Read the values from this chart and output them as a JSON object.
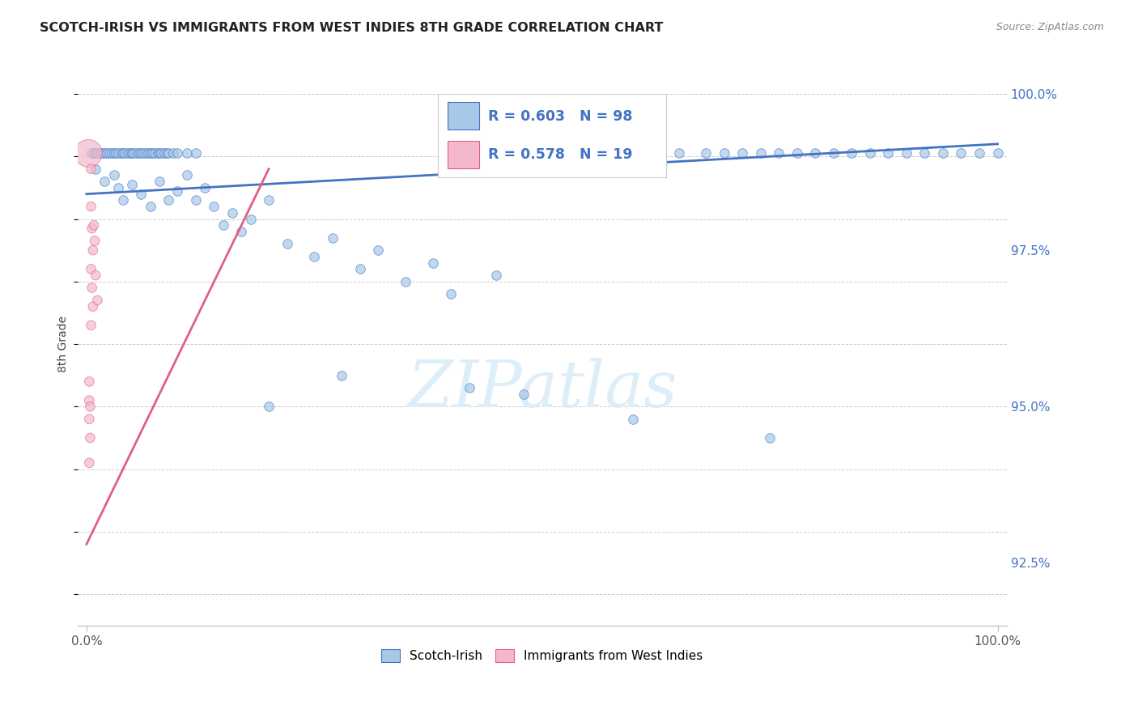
{
  "title": "SCOTCH-IRISH VS IMMIGRANTS FROM WEST INDIES 8TH GRADE CORRELATION CHART",
  "source": "Source: ZipAtlas.com",
  "ylabel": "8th Grade",
  "ylabel_right_values": [
    100.0,
    97.5,
    95.0,
    92.5
  ],
  "legend1_label": "Scotch-Irish",
  "legend2_label": "Immigrants from West Indies",
  "r1": 0.603,
  "n1": 98,
  "r2": 0.578,
  "n2": 19,
  "color_blue": "#a8c8e8",
  "color_pink": "#f4b8cc",
  "line_blue": "#4472c4",
  "line_pink": "#e06080",
  "blue_scatter": [
    [
      0.5,
      99.05
    ],
    [
      0.8,
      99.05
    ],
    [
      1.0,
      99.05
    ],
    [
      1.2,
      99.05
    ],
    [
      1.5,
      99.05
    ],
    [
      1.8,
      99.05
    ],
    [
      2.0,
      99.05
    ],
    [
      2.2,
      99.05
    ],
    [
      2.5,
      99.05
    ],
    [
      2.8,
      99.05
    ],
    [
      3.0,
      99.05
    ],
    [
      3.2,
      99.05
    ],
    [
      3.5,
      99.05
    ],
    [
      3.8,
      99.05
    ],
    [
      4.0,
      99.05
    ],
    [
      4.2,
      99.05
    ],
    [
      4.5,
      99.05
    ],
    [
      4.8,
      99.05
    ],
    [
      5.0,
      99.05
    ],
    [
      5.2,
      99.05
    ],
    [
      5.5,
      99.05
    ],
    [
      5.8,
      99.05
    ],
    [
      6.0,
      99.05
    ],
    [
      6.2,
      99.05
    ],
    [
      6.5,
      99.05
    ],
    [
      6.8,
      99.05
    ],
    [
      7.0,
      99.05
    ],
    [
      7.2,
      99.05
    ],
    [
      7.5,
      99.05
    ],
    [
      7.8,
      99.05
    ],
    [
      8.0,
      99.05
    ],
    [
      8.2,
      99.05
    ],
    [
      8.5,
      99.05
    ],
    [
      8.8,
      99.05
    ],
    [
      9.0,
      99.05
    ],
    [
      9.5,
      99.05
    ],
    [
      10.0,
      99.05
    ],
    [
      11.0,
      99.05
    ],
    [
      12.0,
      99.05
    ],
    [
      50.0,
      99.05
    ],
    [
      52.0,
      99.05
    ],
    [
      55.0,
      99.05
    ],
    [
      58.0,
      99.05
    ],
    [
      60.0,
      99.05
    ],
    [
      62.0,
      99.05
    ],
    [
      65.0,
      99.05
    ],
    [
      68.0,
      99.05
    ],
    [
      70.0,
      99.05
    ],
    [
      72.0,
      99.05
    ],
    [
      74.0,
      99.05
    ],
    [
      76.0,
      99.05
    ],
    [
      78.0,
      99.05
    ],
    [
      80.0,
      99.05
    ],
    [
      82.0,
      99.05
    ],
    [
      84.0,
      99.05
    ],
    [
      86.0,
      99.05
    ],
    [
      88.0,
      99.05
    ],
    [
      90.0,
      99.05
    ],
    [
      92.0,
      99.05
    ],
    [
      94.0,
      99.05
    ],
    [
      96.0,
      99.05
    ],
    [
      98.0,
      99.05
    ],
    [
      100.0,
      99.05
    ],
    [
      1.0,
      98.8
    ],
    [
      2.0,
      98.6
    ],
    [
      3.0,
      98.7
    ],
    [
      3.5,
      98.5
    ],
    [
      4.0,
      98.3
    ],
    [
      5.0,
      98.55
    ],
    [
      6.0,
      98.4
    ],
    [
      7.0,
      98.2
    ],
    [
      8.0,
      98.6
    ],
    [
      9.0,
      98.3
    ],
    [
      10.0,
      98.45
    ],
    [
      11.0,
      98.7
    ],
    [
      12.0,
      98.3
    ],
    [
      13.0,
      98.5
    ],
    [
      14.0,
      98.2
    ],
    [
      15.0,
      97.9
    ],
    [
      16.0,
      98.1
    ],
    [
      17.0,
      97.8
    ],
    [
      18.0,
      98.0
    ],
    [
      20.0,
      98.3
    ],
    [
      22.0,
      97.6
    ],
    [
      25.0,
      97.4
    ],
    [
      27.0,
      97.7
    ],
    [
      30.0,
      97.2
    ],
    [
      32.0,
      97.5
    ],
    [
      35.0,
      97.0
    ],
    [
      38.0,
      97.3
    ],
    [
      40.0,
      96.8
    ],
    [
      45.0,
      97.1
    ],
    [
      48.0,
      95.2
    ],
    [
      20.0,
      95.0
    ],
    [
      28.0,
      95.5
    ],
    [
      42.0,
      95.3
    ],
    [
      60.0,
      94.8
    ],
    [
      75.0,
      94.5
    ]
  ],
  "pink_scatter": [
    [
      0.2,
      99.05
    ],
    [
      0.5,
      98.2
    ],
    [
      0.6,
      97.85
    ],
    [
      0.7,
      97.5
    ],
    [
      0.5,
      97.2
    ],
    [
      0.6,
      96.9
    ],
    [
      0.7,
      96.6
    ],
    [
      0.5,
      96.3
    ],
    [
      0.8,
      97.9
    ],
    [
      0.9,
      97.65
    ],
    [
      0.5,
      98.8
    ],
    [
      1.0,
      97.1
    ],
    [
      1.2,
      96.7
    ],
    [
      0.3,
      95.1
    ],
    [
      0.3,
      94.8
    ],
    [
      0.3,
      95.4
    ],
    [
      0.4,
      95.0
    ],
    [
      0.4,
      94.5
    ],
    [
      0.3,
      94.1
    ]
  ],
  "pink_large_idx": 0,
  "xlim_min": 0,
  "xlim_max": 100,
  "ylim_min": 91.5,
  "ylim_max": 100.5,
  "watermark": "ZIPatlas",
  "watermark_color": "#ddeef8"
}
